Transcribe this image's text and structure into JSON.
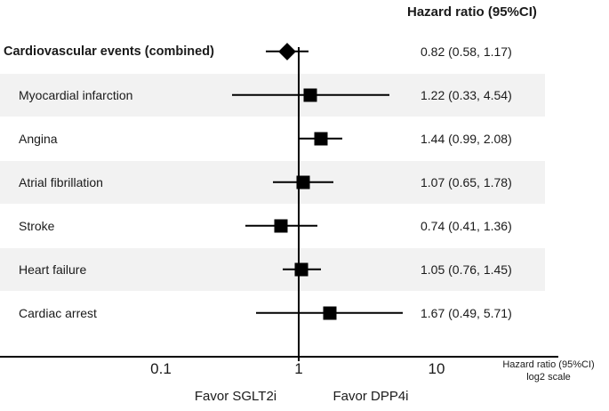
{
  "chart_data": {
    "type": "scatter",
    "subtype": "forest-plot",
    "value_column_header": "Hazard ratio (95%CI)",
    "rows": [
      {
        "label": "Cardiovascular events (combined)",
        "bold": true,
        "marker": "diamond",
        "shaded": false,
        "hr": 0.82,
        "ci_low": 0.58,
        "ci_high": 1.17,
        "value_text": "0.82 (0.58, 1.17)"
      },
      {
        "label": "Myocardial infarction",
        "bold": false,
        "marker": "square",
        "shaded": true,
        "hr": 1.22,
        "ci_low": 0.33,
        "ci_high": 4.54,
        "value_text": "1.22 (0.33, 4.54)"
      },
      {
        "label": "Angina",
        "bold": false,
        "marker": "square",
        "shaded": false,
        "hr": 1.44,
        "ci_low": 0.99,
        "ci_high": 2.08,
        "value_text": "1.44 (0.99, 2.08)"
      },
      {
        "label": "Atrial fibrillation",
        "bold": false,
        "marker": "square",
        "shaded": true,
        "hr": 1.07,
        "ci_low": 0.65,
        "ci_high": 1.78,
        "value_text": "1.07 (0.65, 1.78)"
      },
      {
        "label": "Stroke",
        "bold": false,
        "marker": "square",
        "shaded": false,
        "hr": 0.74,
        "ci_low": 0.41,
        "ci_high": 1.36,
        "value_text": "0.74 (0.41, 1.36)"
      },
      {
        "label": "Heart failure",
        "bold": false,
        "marker": "square",
        "shaded": true,
        "hr": 1.05,
        "ci_low": 0.76,
        "ci_high": 1.45,
        "value_text": "1.05 (0.76, 1.45)"
      },
      {
        "label": "Cardiac arrest",
        "bold": false,
        "marker": "square",
        "shaded": false,
        "hr": 1.67,
        "ci_low": 0.49,
        "ci_high": 5.71,
        "value_text": "1.67 (0.49, 5.71)"
      }
    ],
    "x_axis": {
      "scale": "log",
      "reference_line": 1,
      "ticks": [
        {
          "value": 0.1,
          "label": "0.1"
        },
        {
          "value": 1,
          "label": "1"
        },
        {
          "value": 10,
          "label": "10"
        }
      ],
      "title_line1": "Hazard ratio (95%CI)",
      "title_line2": "log2 scale",
      "left_label": "Favor SGLT2i",
      "right_label": "Favor DPP4i"
    },
    "colors": {
      "stripe": "#f2f2f2",
      "marker": "#000000",
      "text": "#1a1a1a",
      "background": "#ffffff"
    }
  }
}
